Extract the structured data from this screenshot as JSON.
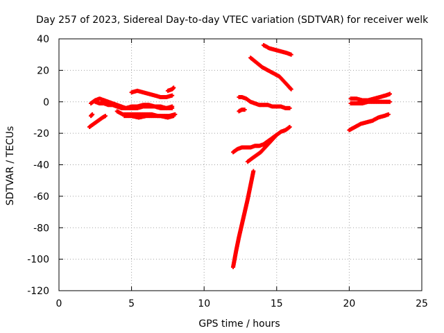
{
  "chart_data": {
    "type": "scatter",
    "title": "Day 257 of 2023, Sidereal Day-to-day VTEC variation (SDTVAR) for receiver welk",
    "xlabel": "GPS time / hours",
    "ylabel": "SDTVAR / TECUs",
    "xlim": [
      0,
      25
    ],
    "ylim": [
      -120,
      40
    ],
    "xticks": [
      0,
      5,
      10,
      15,
      20,
      25
    ],
    "yticks": [
      -120,
      -100,
      -80,
      -60,
      -40,
      -20,
      0,
      20,
      40
    ],
    "xtick_labels": [
      "0",
      "5",
      "10",
      "15",
      "20",
      "25"
    ],
    "ytick_labels": [
      "-120",
      "-100",
      "-80",
      "-60",
      "-40",
      "-20",
      "0",
      "20",
      "40"
    ],
    "grid": true,
    "legend": "none",
    "marker": "plus",
    "color": "#ff0000",
    "series": [
      {
        "x": [
          2.2,
          2.5,
          2.8,
          3.1,
          3.4,
          3.7,
          4.0,
          4.3,
          4.6,
          5.0,
          5.4,
          5.8,
          6.2,
          6.6,
          7.0,
          7.4,
          7.8
        ],
        "values": [
          -1,
          1,
          2,
          1,
          0,
          -1,
          -2,
          -3,
          -4,
          -4,
          -4,
          -3,
          -3,
          -3,
          -3,
          -4,
          -4
        ]
      },
      {
        "x": [
          2.5,
          2.8,
          3.1,
          3.4,
          3.7,
          4.0,
          4.3,
          4.6,
          5.0,
          5.4,
          5.8,
          6.2,
          6.6,
          7.0,
          7.4,
          7.8
        ],
        "values": [
          0,
          -1,
          -1,
          -2,
          -2,
          -3,
          -4,
          -4,
          -3,
          -3,
          -2,
          -2,
          -3,
          -4,
          -4,
          -3
        ]
      },
      {
        "x": [
          4.0,
          4.4,
          4.8,
          5.2,
          5.6,
          6.0,
          6.4,
          6.8,
          7.2,
          7.6,
          8.0
        ],
        "values": [
          -6,
          -8,
          -8,
          -8,
          -8,
          -8,
          -8,
          -9,
          -9,
          -9,
          -8
        ]
      },
      {
        "x": [
          4.5,
          5.0,
          5.5,
          6.0,
          6.5,
          7.0,
          7.5,
          7.9
        ],
        "values": [
          -9,
          -9,
          -10,
          -9,
          -9,
          -9,
          -10,
          -9
        ]
      },
      {
        "x": [
          5.0,
          5.4,
          5.8,
          6.2,
          6.6,
          7.0,
          7.4,
          7.8
        ],
        "values": [
          6,
          7,
          6,
          5,
          4,
          3,
          3,
          4
        ]
      },
      {
        "x": [
          7.5,
          7.8,
          7.9
        ],
        "values": [
          7,
          8,
          9
        ]
      },
      {
        "x": [
          2.1,
          2.4,
          2.7,
          3.0,
          3.2
        ],
        "values": [
          -16,
          -14,
          -12,
          -10,
          -9
        ]
      },
      {
        "x": [
          2.2,
          2.3
        ],
        "values": [
          -9,
          -8
        ]
      },
      {
        "x": [
          12.4,
          12.6,
          12.9,
          13.2,
          13.5,
          13.8,
          14.1,
          14.4,
          14.7,
          15.0,
          15.3,
          15.6,
          15.9
        ],
        "values": [
          3,
          3,
          2,
          0,
          -1,
          -2,
          -2,
          -2,
          -3,
          -3,
          -3,
          -4,
          -4
        ]
      },
      {
        "x": [
          12.4,
          12.6,
          12.8
        ],
        "values": [
          -6,
          -5,
          -5
        ]
      },
      {
        "x": [
          13.2,
          13.6,
          14.0,
          14.4,
          14.8,
          15.2,
          15.6,
          16.0
        ],
        "values": [
          28,
          25,
          22,
          20,
          18,
          16,
          12,
          8
        ]
      },
      {
        "x": [
          14.1,
          14.5,
          14.9,
          15.3,
          15.7,
          16.0
        ],
        "values": [
          36,
          34,
          33,
          32,
          31,
          30
        ]
      },
      {
        "x": [
          12.0,
          12.3,
          12.6,
          12.9,
          13.2,
          13.5,
          13.8,
          14.1,
          14.4,
          14.7,
          15.0,
          15.3,
          15.6,
          15.9
        ],
        "values": [
          -32,
          -30,
          -29,
          -29,
          -29,
          -28,
          -28,
          -27,
          -25,
          -23,
          -21,
          -19,
          -18,
          -16
        ]
      },
      {
        "x": [
          13.0,
          13.3,
          13.6,
          13.9,
          14.2,
          14.5,
          14.8,
          15.0
        ],
        "values": [
          -38,
          -36,
          -34,
          -32,
          -29,
          -26,
          -23,
          -21
        ]
      },
      {
        "x": [
          12.0,
          12.2,
          12.4,
          12.6,
          12.8,
          13.0,
          13.2,
          13.4
        ],
        "values": [
          -105,
          -95,
          -86,
          -78,
          -70,
          -62,
          -53,
          -44
        ]
      },
      {
        "x": [
          20.1,
          20.5,
          20.9,
          21.3,
          21.7,
          22.1,
          22.5,
          22.8
        ],
        "values": [
          2,
          2,
          1,
          1,
          2,
          3,
          4,
          5
        ]
      },
      {
        "x": [
          20.1,
          20.5,
          20.9,
          21.3,
          21.7,
          22.1,
          22.5,
          22.8
        ],
        "values": [
          -1,
          -1,
          -1,
          0,
          0,
          0,
          0,
          0
        ]
      },
      {
        "x": [
          20.0,
          20.4,
          20.8,
          21.2,
          21.6,
          22.0,
          22.4,
          22.7
        ],
        "values": [
          -18,
          -16,
          -14,
          -13,
          -12,
          -10,
          -9,
          -8
        ]
      }
    ]
  }
}
